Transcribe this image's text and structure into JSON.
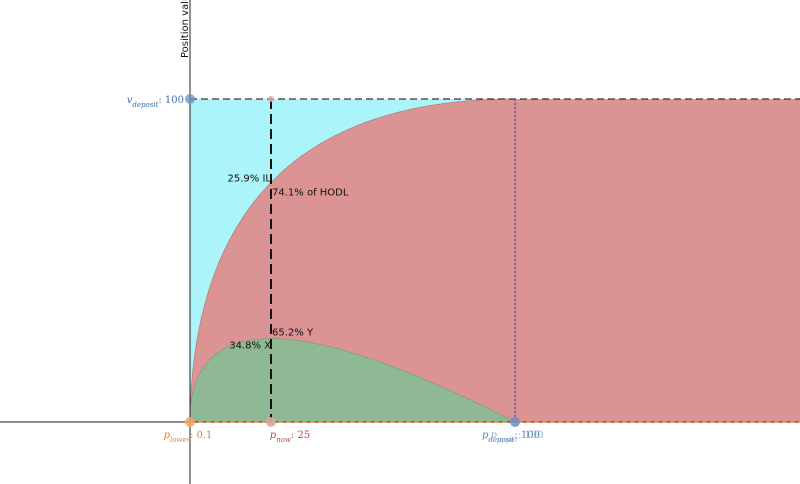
{
  "chart_data": {
    "type": "area",
    "y_axis_label": "Position value",
    "x_range": [
      0.1,
      100
    ],
    "y_range": [
      0,
      100
    ],
    "params": {
      "p_lower": 0.1,
      "p_now": 25,
      "p_deposit": 100,
      "p_upper": 100,
      "v_deposit": 100
    },
    "labels": {
      "p_lower": {
        "name": "p",
        "sub": "lower",
        "value": ": 0.1"
      },
      "p_now": {
        "name": "p",
        "sub": "now",
        "value": ": 25"
      },
      "p_deposit": {
        "name": "p",
        "sub": "deposit",
        "value": ": 100"
      },
      "p_upper": {
        "name": "p",
        "sub": "upper",
        "value": ": 100"
      },
      "v_deposit": {
        "name": "v",
        "sub": "deposit",
        "value": ": 100"
      }
    },
    "annotations": {
      "il": "25.9% IL",
      "of_hodl": "74.1% of HODL",
      "x_share": "34.8% X",
      "y_share": "65.2% Y"
    },
    "colors": {
      "hodl_fill": "#aaf4fa",
      "lp_fill": "#dc9393",
      "x_fill": "#8fb994",
      "orange": "#f4a460",
      "blue_marker": "#6f8fbf",
      "now_marker": "#d8a8a8",
      "purple_line": "#7b52ab"
    }
  }
}
